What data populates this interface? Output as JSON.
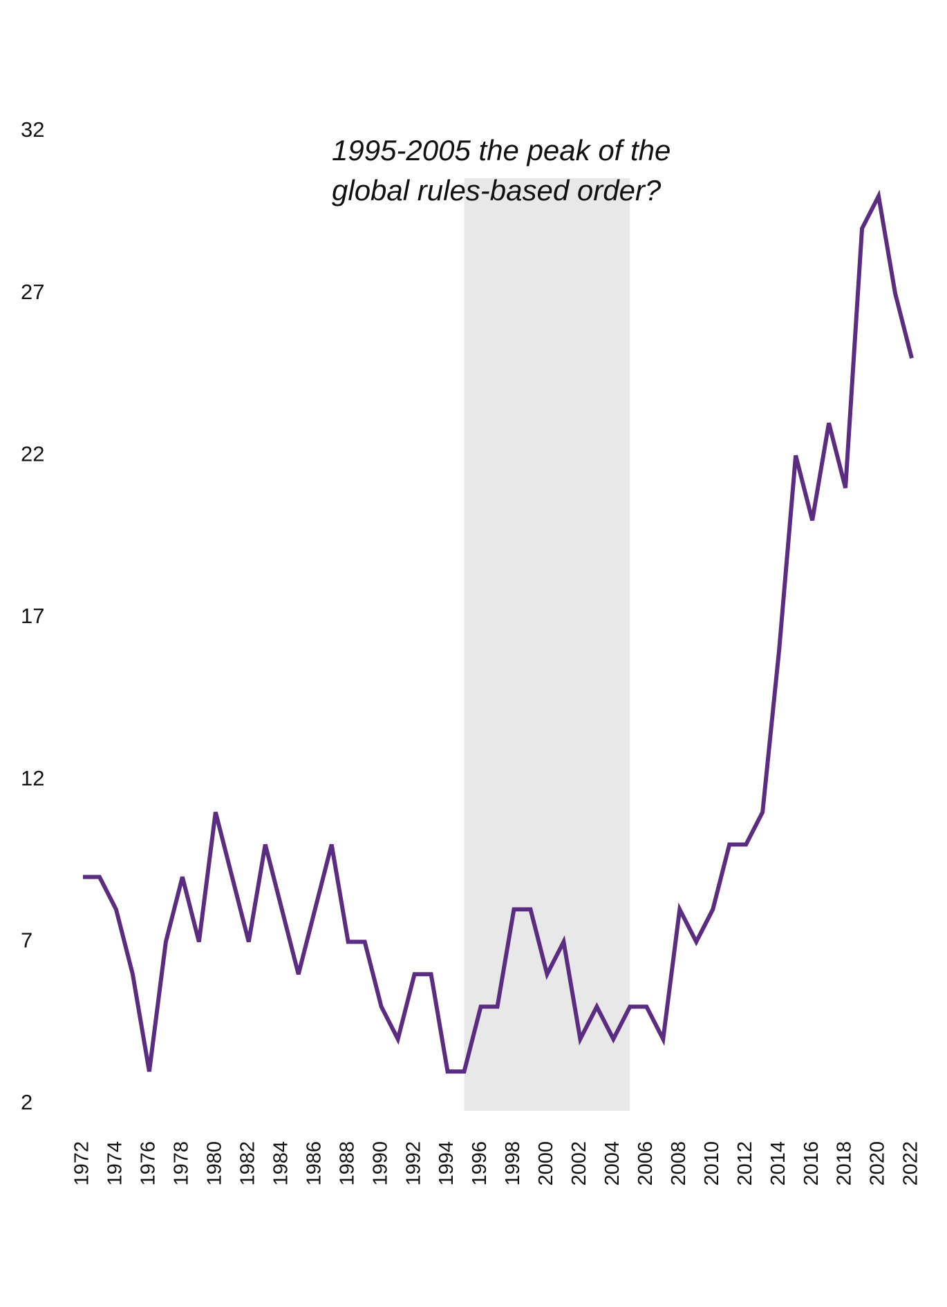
{
  "chart_data": {
    "type": "line",
    "annotation": [
      "1995-2005 the peak of the",
      "global rules-based order?"
    ],
    "shaded_range": [
      1995,
      2005
    ],
    "x": [
      1972,
      1973,
      1974,
      1975,
      1976,
      1977,
      1978,
      1979,
      1980,
      1981,
      1982,
      1983,
      1984,
      1985,
      1986,
      1987,
      1988,
      1989,
      1990,
      1991,
      1992,
      1993,
      1994,
      1995,
      1996,
      1997,
      1998,
      1999,
      2000,
      2001,
      2002,
      2003,
      2004,
      2005,
      2006,
      2007,
      2008,
      2009,
      2010,
      2011,
      2012,
      2013,
      2014,
      2015,
      2016,
      2017,
      2018,
      2019,
      2020,
      2021,
      2022
    ],
    "series": [
      {
        "color": "#5b2d82",
        "values": [
          9,
          9,
          8,
          6,
          3,
          7,
          9,
          7,
          11,
          9,
          7,
          10,
          8,
          6,
          8,
          10,
          7,
          7,
          5,
          4,
          6,
          6,
          3,
          3,
          5,
          5,
          8,
          8,
          6,
          7,
          4,
          5,
          4,
          5,
          5,
          4,
          8,
          7,
          8,
          10,
          10,
          11,
          16,
          22,
          20,
          23,
          21,
          29,
          30,
          27,
          25
        ]
      }
    ],
    "xlim": [
      1972,
      2022
    ],
    "xticks": [
      1972,
      1974,
      1976,
      1978,
      1980,
      1982,
      1984,
      1986,
      1988,
      1990,
      1992,
      1994,
      1996,
      1998,
      2000,
      2002,
      2004,
      2006,
      2008,
      2010,
      2012,
      2014,
      2016,
      2018,
      2020,
      2022
    ],
    "ylim": [
      2,
      32
    ],
    "yticks": [
      2,
      7,
      12,
      17,
      22,
      27,
      32
    ],
    "grid": false
  }
}
